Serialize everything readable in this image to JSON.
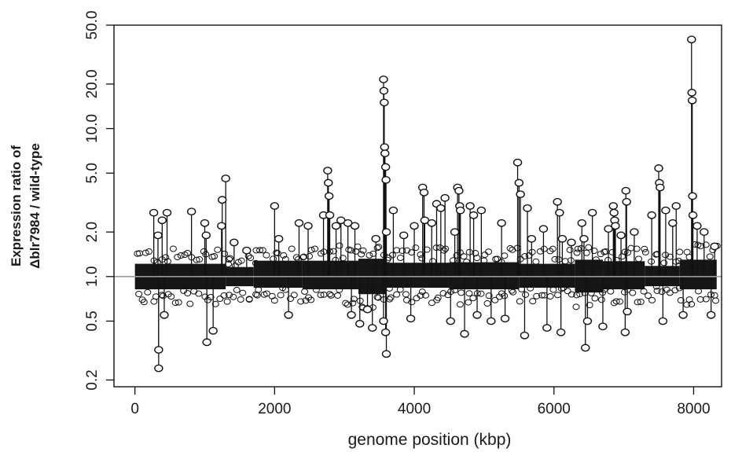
{
  "chart_data": {
    "type": "scatter",
    "xlabel": "genome position (kbp)",
    "ylabel_lines": [
      "Expression ratio of",
      "Δblr7984 / wild-type"
    ],
    "xlim": [
      -300,
      8400
    ],
    "ylim": [
      0.18,
      50.0
    ],
    "y_scale": "log",
    "x_ticks": [
      0,
      2000,
      4000,
      6000,
      8000
    ],
    "x_tick_labels": [
      "0",
      "2000",
      "4000",
      "6000",
      "8000"
    ],
    "y_ticks": [
      0.2,
      0.5,
      1.0,
      2.0,
      5.0,
      10.0,
      20.0,
      50.0
    ],
    "y_tick_labels": [
      "0.2",
      "0.5",
      "1.0",
      "2.0",
      "5.0",
      "10.0",
      "20.0",
      "50.0"
    ],
    "reference_line_y": 1.0,
    "marker": "open-circle",
    "grid": false,
    "colors": {
      "points": "#111111",
      "axis": "#111111",
      "reference_line": "#9a9a9a",
      "background": "#ffffff"
    },
    "band_segments": [
      {
        "x_start": 0,
        "x_end": 1300,
        "low": 0.82,
        "high": 1.22
      },
      {
        "x_start": 1300,
        "x_end": 1700,
        "low": 0.86,
        "high": 1.16
      },
      {
        "x_start": 1700,
        "x_end": 2400,
        "low": 0.84,
        "high": 1.28
      },
      {
        "x_start": 2400,
        "x_end": 3200,
        "low": 0.82,
        "high": 1.28
      },
      {
        "x_start": 3200,
        "x_end": 3600,
        "low": 0.76,
        "high": 1.32
      },
      {
        "x_start": 3600,
        "x_end": 4500,
        "low": 0.84,
        "high": 1.24
      },
      {
        "x_start": 4500,
        "x_end": 5500,
        "low": 0.82,
        "high": 1.25
      },
      {
        "x_start": 5500,
        "x_end": 6300,
        "low": 0.84,
        "high": 1.22
      },
      {
        "x_start": 6300,
        "x_end": 6700,
        "low": 0.78,
        "high": 1.3
      },
      {
        "x_start": 6700,
        "x_end": 7300,
        "low": 0.82,
        "high": 1.27
      },
      {
        "x_start": 7300,
        "x_end": 7800,
        "low": 0.86,
        "high": 1.18
      },
      {
        "x_start": 7800,
        "x_end": 8330,
        "low": 0.82,
        "high": 1.3
      }
    ],
    "outliers": [
      {
        "x": 270,
        "y": 2.7
      },
      {
        "x": 390,
        "y": 2.4
      },
      {
        "x": 330,
        "y": 1.9
      },
      {
        "x": 460,
        "y": 2.7
      },
      {
        "x": 340,
        "y": 0.32
      },
      {
        "x": 340,
        "y": 0.24
      },
      {
        "x": 420,
        "y": 0.55
      },
      {
        "x": 810,
        "y": 2.75
      },
      {
        "x": 1000,
        "y": 2.3
      },
      {
        "x": 1020,
        "y": 1.9
      },
      {
        "x": 1030,
        "y": 0.36
      },
      {
        "x": 1120,
        "y": 0.43
      },
      {
        "x": 1250,
        "y": 3.3
      },
      {
        "x": 1300,
        "y": 4.6
      },
      {
        "x": 1240,
        "y": 2.2
      },
      {
        "x": 1420,
        "y": 1.7
      },
      {
        "x": 1600,
        "y": 1.5
      },
      {
        "x": 2000,
        "y": 3.0
      },
      {
        "x": 2060,
        "y": 1.8
      },
      {
        "x": 2200,
        "y": 0.55
      },
      {
        "x": 2350,
        "y": 2.3
      },
      {
        "x": 2480,
        "y": 2.2
      },
      {
        "x": 2700,
        "y": 2.6
      },
      {
        "x": 2760,
        "y": 5.2
      },
      {
        "x": 2770,
        "y": 4.3
      },
      {
        "x": 2780,
        "y": 3.5
      },
      {
        "x": 2790,
        "y": 2.6
      },
      {
        "x": 2880,
        "y": 2.2
      },
      {
        "x": 2950,
        "y": 2.4
      },
      {
        "x": 3050,
        "y": 2.3
      },
      {
        "x": 3150,
        "y": 2.2
      },
      {
        "x": 3100,
        "y": 0.55
      },
      {
        "x": 3220,
        "y": 0.48
      },
      {
        "x": 3330,
        "y": 0.6
      },
      {
        "x": 3400,
        "y": 0.45
      },
      {
        "x": 3450,
        "y": 1.8
      },
      {
        "x": 3560,
        "y": 21.5
      },
      {
        "x": 3565,
        "y": 18.0
      },
      {
        "x": 3570,
        "y": 15.0
      },
      {
        "x": 3575,
        "y": 7.5
      },
      {
        "x": 3580,
        "y": 6.8
      },
      {
        "x": 3590,
        "y": 5.5
      },
      {
        "x": 3595,
        "y": 4.5
      },
      {
        "x": 3600,
        "y": 2.0
      },
      {
        "x": 3560,
        "y": 0.5
      },
      {
        "x": 3590,
        "y": 0.42
      },
      {
        "x": 3600,
        "y": 0.3
      },
      {
        "x": 3700,
        "y": 2.8
      },
      {
        "x": 3850,
        "y": 1.9
      },
      {
        "x": 3950,
        "y": 0.52
      },
      {
        "x": 4000,
        "y": 2.2
      },
      {
        "x": 4120,
        "y": 4.0
      },
      {
        "x": 4140,
        "y": 3.7
      },
      {
        "x": 4150,
        "y": 2.4
      },
      {
        "x": 4250,
        "y": 2.3
      },
      {
        "x": 4320,
        "y": 3.1
      },
      {
        "x": 4380,
        "y": 2.9
      },
      {
        "x": 4440,
        "y": 3.4
      },
      {
        "x": 4520,
        "y": 0.5
      },
      {
        "x": 4580,
        "y": 2.0
      },
      {
        "x": 4620,
        "y": 4.0
      },
      {
        "x": 4640,
        "y": 3.8
      },
      {
        "x": 4650,
        "y": 3.0
      },
      {
        "x": 4660,
        "y": 2.8
      },
      {
        "x": 4720,
        "y": 0.41
      },
      {
        "x": 4800,
        "y": 3.0
      },
      {
        "x": 4850,
        "y": 2.6
      },
      {
        "x": 4900,
        "y": 0.55
      },
      {
        "x": 4960,
        "y": 2.8
      },
      {
        "x": 5100,
        "y": 0.5
      },
      {
        "x": 5250,
        "y": 2.3
      },
      {
        "x": 5300,
        "y": 0.52
      },
      {
        "x": 5480,
        "y": 5.9
      },
      {
        "x": 5500,
        "y": 4.3
      },
      {
        "x": 5520,
        "y": 3.6
      },
      {
        "x": 5580,
        "y": 0.4
      },
      {
        "x": 5620,
        "y": 2.9
      },
      {
        "x": 5680,
        "y": 1.8
      },
      {
        "x": 5850,
        "y": 2.1
      },
      {
        "x": 5900,
        "y": 0.45
      },
      {
        "x": 6050,
        "y": 3.2
      },
      {
        "x": 6080,
        "y": 2.7
      },
      {
        "x": 6100,
        "y": 0.42
      },
      {
        "x": 6120,
        "y": 1.8
      },
      {
        "x": 6250,
        "y": 1.7
      },
      {
        "x": 6400,
        "y": 2.3
      },
      {
        "x": 6430,
        "y": 1.8
      },
      {
        "x": 6450,
        "y": 0.33
      },
      {
        "x": 6480,
        "y": 0.5
      },
      {
        "x": 6550,
        "y": 2.7
      },
      {
        "x": 6700,
        "y": 0.46
      },
      {
        "x": 6780,
        "y": 2.1
      },
      {
        "x": 6850,
        "y": 3.0
      },
      {
        "x": 6860,
        "y": 2.7
      },
      {
        "x": 6870,
        "y": 2.4
      },
      {
        "x": 6880,
        "y": 2.2
      },
      {
        "x": 6960,
        "y": 1.9
      },
      {
        "x": 7030,
        "y": 3.8
      },
      {
        "x": 7040,
        "y": 3.2
      },
      {
        "x": 7020,
        "y": 0.42
      },
      {
        "x": 7050,
        "y": 0.58
      },
      {
        "x": 7150,
        "y": 2.0
      },
      {
        "x": 7400,
        "y": 2.6
      },
      {
        "x": 7500,
        "y": 5.4
      },
      {
        "x": 7510,
        "y": 4.3
      },
      {
        "x": 7520,
        "y": 4.0
      },
      {
        "x": 7560,
        "y": 0.5
      },
      {
        "x": 7600,
        "y": 2.8
      },
      {
        "x": 7700,
        "y": 2.3
      },
      {
        "x": 7750,
        "y": 3.0
      },
      {
        "x": 7850,
        "y": 0.55
      },
      {
        "x": 7970,
        "y": 40.0
      },
      {
        "x": 7975,
        "y": 17.5
      },
      {
        "x": 7980,
        "y": 15.5
      },
      {
        "x": 7985,
        "y": 3.5
      },
      {
        "x": 7990,
        "y": 2.6
      },
      {
        "x": 8050,
        "y": 2.2
      },
      {
        "x": 8150,
        "y": 2.0
      },
      {
        "x": 8250,
        "y": 0.55
      },
      {
        "x": 8300,
        "y": 1.6
      }
    ]
  }
}
